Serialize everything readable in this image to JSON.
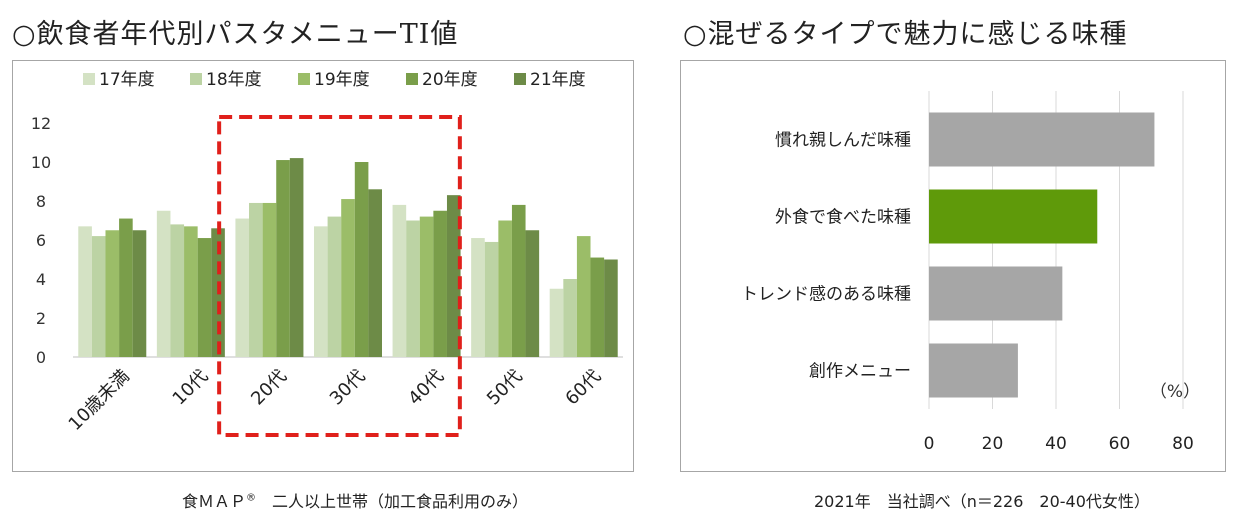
{
  "left": {
    "title": "○飲食者年代別パスタメニューTI値",
    "footnote_main": "食ＭＡＰ",
    "footnote_mark": "®",
    "footnote_rest": "　二人以上世帯（加工食品利用のみ）"
  },
  "right": {
    "title": "○混ぜるタイプで魅力に感じる味種",
    "footnote": "2021年　当社調べ（n＝226　20-40代女性）",
    "unit": "（%）"
  },
  "chart_data": [
    {
      "type": "bar",
      "categories": [
        "10歳未満",
        "10代",
        "20代",
        "30代",
        "40代",
        "50代",
        "60代"
      ],
      "series": [
        {
          "name": "17年度",
          "color": "#d4e2c4",
          "values": [
            6.7,
            7.5,
            7.1,
            6.7,
            7.8,
            6.1,
            3.5
          ]
        },
        {
          "name": "18年度",
          "color": "#bcd3a4",
          "values": [
            6.2,
            6.8,
            7.9,
            7.2,
            7.0,
            5.9,
            4.0
          ]
        },
        {
          "name": "19年度",
          "color": "#9bbd68",
          "values": [
            6.5,
            6.7,
            7.9,
            8.1,
            7.2,
            7.0,
            6.2
          ]
        },
        {
          "name": "20年度",
          "color": "#7a9e4a",
          "values": [
            7.1,
            6.1,
            10.1,
            10.0,
            7.5,
            7.8,
            5.1
          ]
        },
        {
          "name": "21年度",
          "color": "#6d8b47",
          "values": [
            6.5,
            6.6,
            10.2,
            8.6,
            8.3,
            6.5,
            5.0
          ]
        }
      ],
      "ylim": [
        0,
        12
      ],
      "yticks": [
        "0",
        "2",
        "4",
        "6",
        "8",
        "10",
        "12"
      ],
      "highlight": {
        "from": "20代",
        "to": "40代",
        "color": "#e0201b"
      },
      "legend": "top"
    },
    {
      "type": "bar",
      "orientation": "horizontal",
      "categories": [
        "慣れ親しんだ味種",
        "外食で食べた味種",
        "トレンド感のある味種",
        "創作メニュー"
      ],
      "values": [
        71,
        53,
        42,
        28
      ],
      "colors": [
        "#a6a6a6",
        "#5f9a0a",
        "#a6a6a6",
        "#a6a6a6"
      ],
      "xlim": [
        0,
        80
      ],
      "xticks": [
        "0",
        "20",
        "40",
        "60",
        "80"
      ],
      "xlabel": "（%）"
    }
  ]
}
